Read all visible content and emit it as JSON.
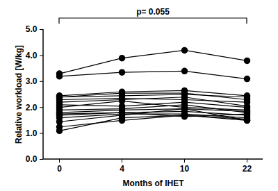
{
  "chart_data": {
    "type": "line",
    "x_label": "Months of IHET",
    "y_label": "Relative workload [W/kg]",
    "annotation": "p= 0.055",
    "categories": [
      "0",
      "4",
      "10",
      "22"
    ],
    "marker": "circle",
    "color": "#000000",
    "ylim": [
      0,
      5
    ],
    "yticks": [
      0,
      1,
      2,
      3,
      4,
      5
    ],
    "grid": false,
    "series": [
      {
        "values": [
          3.3,
          3.9,
          4.2,
          3.8
        ]
      },
      {
        "values": [
          3.2,
          3.35,
          3.4,
          3.1
        ]
      },
      {
        "values": [
          2.45,
          2.6,
          2.65,
          2.45
        ]
      },
      {
        "values": [
          2.4,
          2.55,
          2.55,
          2.3
        ]
      },
      {
        "values": [
          2.4,
          2.45,
          2.5,
          2.4
        ]
      },
      {
        "values": [
          2.3,
          2.35,
          2.3,
          2.2
        ]
      },
      {
        "values": [
          2.2,
          2.3,
          2.4,
          2.05
        ]
      },
      {
        "values": [
          2.1,
          2.05,
          2.2,
          2.0
        ]
      },
      {
        "values": [
          2.0,
          2.25,
          2.0,
          1.9
        ]
      },
      {
        "values": [
          1.9,
          1.95,
          2.1,
          1.8
        ]
      },
      {
        "values": [
          1.8,
          1.9,
          1.95,
          1.85
        ]
      },
      {
        "values": [
          1.75,
          1.8,
          1.85,
          1.7
        ]
      },
      {
        "values": [
          1.7,
          1.8,
          1.65,
          1.75
        ]
      },
      {
        "values": [
          1.6,
          1.75,
          1.75,
          1.6
        ]
      },
      {
        "values": [
          1.45,
          1.7,
          1.95,
          1.5
        ]
      },
      {
        "values": [
          1.25,
          1.5,
          1.7,
          1.55
        ]
      },
      {
        "values": [
          1.1,
          1.6,
          1.7,
          1.5
        ]
      }
    ]
  }
}
